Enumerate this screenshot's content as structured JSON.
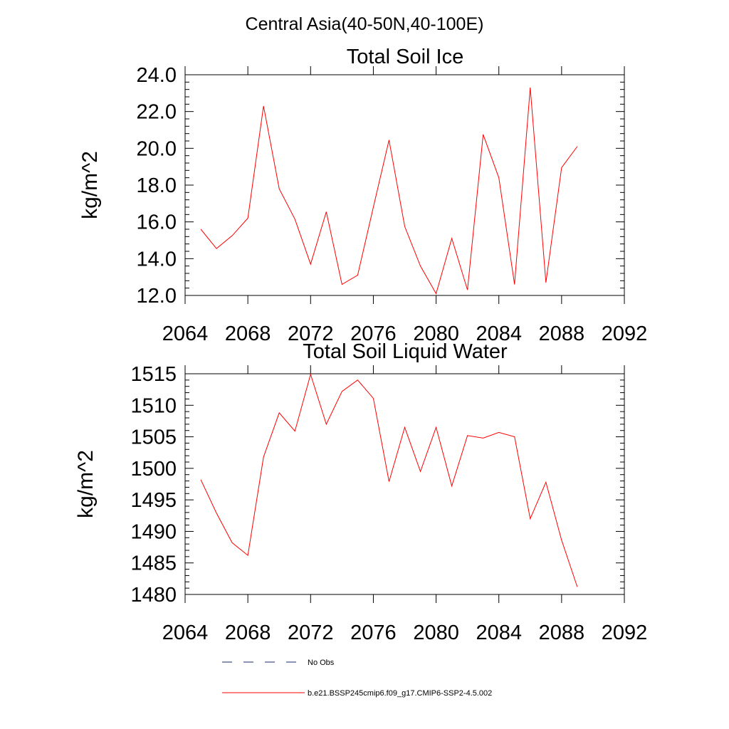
{
  "suptitle": "Central Asia(40-50N,40-100E)",
  "colors": {
    "series": "#ff0000",
    "obs": "#1a2a6e"
  },
  "legend": [
    {
      "label": "No Obs",
      "style": "dashed",
      "color": "#1a2a6e"
    },
    {
      "label": "b.e21.BSSP245cmip6.f09_g17.CMIP6-SSP2-4.5.002",
      "style": "solid",
      "color": "#ff0000"
    }
  ],
  "chart_data": [
    {
      "type": "line",
      "title": "Total Soil Ice",
      "xlabel": "",
      "ylabel": "kg/m^2",
      "xlim": [
        2064,
        2092
      ],
      "ylim": [
        12,
        24
      ],
      "x_ticks": [
        2064,
        2068,
        2072,
        2076,
        2080,
        2084,
        2088,
        2092
      ],
      "x_tick_labels": [
        "2064",
        "2068",
        "2072",
        "2076",
        "2080",
        "2084",
        "2088",
        "2092"
      ],
      "y_ticks": [
        12,
        14,
        16,
        18,
        20,
        22,
        24
      ],
      "y_tick_labels": [
        "12.0",
        "14.0",
        "16.0",
        "18.0",
        "20.0",
        "22.0",
        "24.0"
      ],
      "x": [
        2065,
        2066,
        2067,
        2068,
        2069,
        2070,
        2071,
        2072,
        2073,
        2074,
        2075,
        2076,
        2077,
        2078,
        2079,
        2080,
        2081,
        2082,
        2083,
        2084,
        2085,
        2086,
        2087,
        2088,
        2089
      ],
      "series": [
        {
          "name": "b.e21.BSSP245cmip6.f09_g17.CMIP6-SSP2-4.5.002",
          "values": [
            15.6,
            14.55,
            15.25,
            16.2,
            22.3,
            17.8,
            16.15,
            13.7,
            16.55,
            12.6,
            13.1,
            16.8,
            20.45,
            15.75,
            13.6,
            12.1,
            15.1,
            12.3,
            20.75,
            18.4,
            12.6,
            23.3,
            12.7,
            18.95,
            20.1
          ]
        }
      ]
    },
    {
      "type": "line",
      "title": "Total Soil Liquid Water",
      "xlabel": "",
      "ylabel": "kg/m^2",
      "xlim": [
        2064,
        2092
      ],
      "ylim": [
        1480,
        1515
      ],
      "x_ticks": [
        2064,
        2068,
        2072,
        2076,
        2080,
        2084,
        2088,
        2092
      ],
      "x_tick_labels": [
        "2064",
        "2068",
        "2072",
        "2076",
        "2080",
        "2084",
        "2088",
        "2092"
      ],
      "y_ticks": [
        1480,
        1485,
        1490,
        1495,
        1500,
        1505,
        1510,
        1515
      ],
      "y_tick_labels": [
        "1480",
        "1485",
        "1490",
        "1495",
        "1500",
        "1505",
        "1510",
        "1515"
      ],
      "x": [
        2065,
        2066,
        2067,
        2068,
        2069,
        2070,
        2071,
        2072,
        2073,
        2074,
        2075,
        2076,
        2077,
        2078,
        2079,
        2080,
        2081,
        2082,
        2083,
        2084,
        2085,
        2086,
        2087,
        2088,
        2089
      ],
      "series": [
        {
          "name": "b.e21.BSSP245cmip6.f09_g17.CMIP6-SSP2-4.5.002",
          "values": [
            1498.2,
            1492.9,
            1488.2,
            1486.2,
            1501.8,
            1508.8,
            1505.9,
            1514.9,
            1507.0,
            1512.2,
            1514.0,
            1511.1,
            1497.9,
            1506.5,
            1499.5,
            1506.5,
            1497.2,
            1505.2,
            1504.8,
            1505.7,
            1505.0,
            1492.0,
            1497.8,
            1488.6,
            1481.2
          ]
        }
      ]
    }
  ]
}
